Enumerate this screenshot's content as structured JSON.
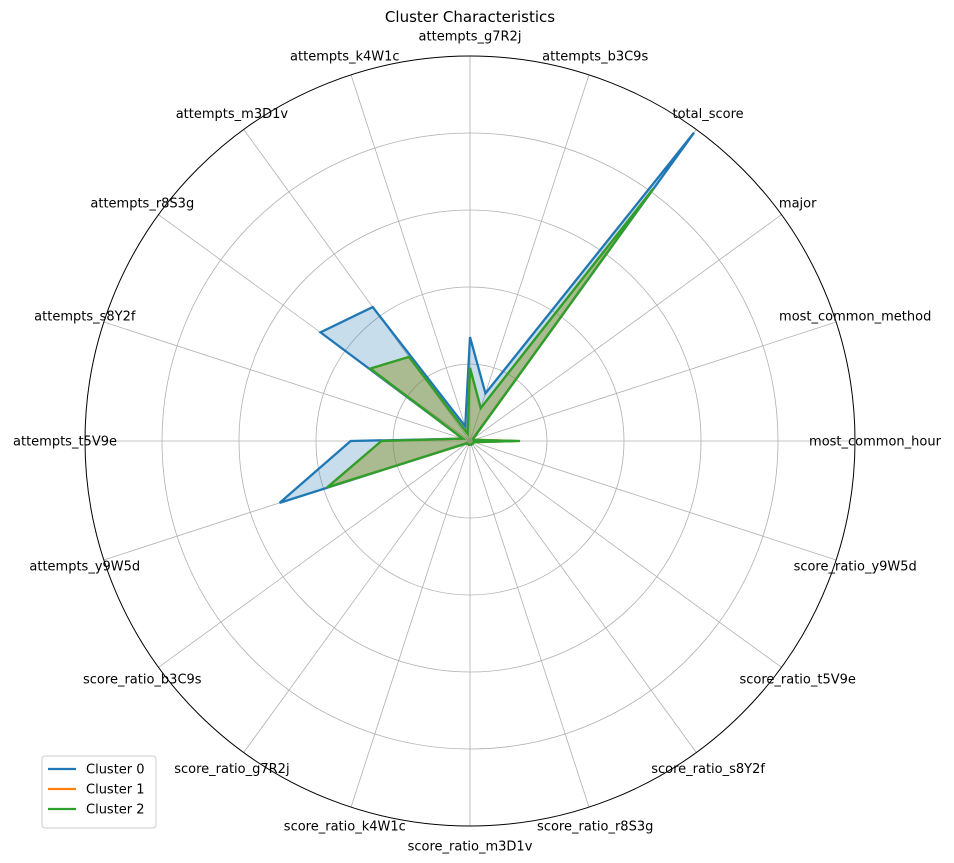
{
  "chart_data": {
    "type": "radar",
    "title": "Cluster Characteristics",
    "axes": [
      "most_common_hour",
      "most_common_method",
      "major",
      "total_score",
      "attempts_b3C9s",
      "attempts_g7R2j",
      "attempts_k4W1c",
      "attempts_m3D1v",
      "attempts_r8S3g",
      "attempts_s8Y2f",
      "attempts_t5V9e",
      "attempts_y9W5d",
      "score_ratio_b3C9s",
      "score_ratio_g7R2j",
      "score_ratio_k4W1c",
      "score_ratio_m3D1v",
      "score_ratio_r8S3g",
      "score_ratio_s8Y2f",
      "score_ratio_t5V9e",
      "score_ratio_y9W5d"
    ],
    "rlim": [
      0,
      1
    ],
    "radial_gridlines": [
      0.2,
      0.4,
      0.6,
      0.8
    ],
    "grid": true,
    "legend_position": "lower-left",
    "series": [
      {
        "name": "Cluster 0",
        "color": "#1f77b4",
        "values": [
          0.01,
          0.01,
          0.01,
          0.99,
          0.13,
          0.27,
          0.04,
          0.43,
          0.48,
          0.02,
          0.31,
          0.52,
          0.01,
          0.01,
          0.01,
          0.01,
          0.01,
          0.01,
          0.01,
          0.01
        ]
      },
      {
        "name": "Cluster 1",
        "color": "#ff7f0e",
        "values": [
          0.12,
          0.01,
          0.01,
          0.81,
          0.09,
          0.19,
          0.02,
          0.27,
          0.32,
          0.02,
          0.23,
          0.39,
          0.01,
          0.01,
          0.01,
          0.01,
          0.01,
          0.01,
          0.01,
          0.01
        ]
      },
      {
        "name": "Cluster 2",
        "color": "#2ca02c",
        "values": [
          0.13,
          0.01,
          0.01,
          0.81,
          0.09,
          0.19,
          0.02,
          0.27,
          0.32,
          0.02,
          0.23,
          0.39,
          0.01,
          0.01,
          0.01,
          0.01,
          0.01,
          0.01,
          0.01,
          0.01
        ]
      }
    ]
  }
}
